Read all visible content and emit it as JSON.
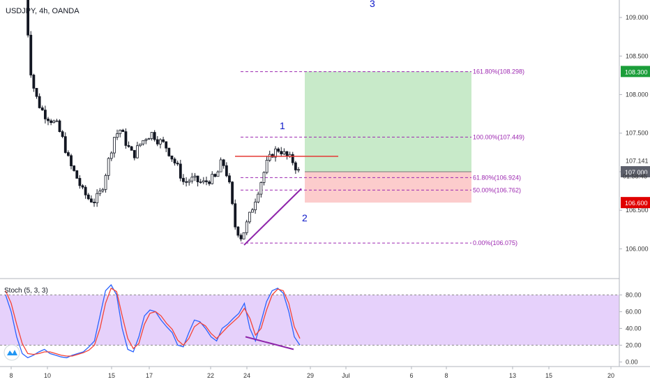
{
  "header": {
    "symbol_title": "USDJPY, 4h, OANDA"
  },
  "colors": {
    "candle_up": "#ffffff",
    "candle_down": "#131722",
    "candle_border": "#131722",
    "fib": "#9c27b0",
    "wave_label": "#0d18c9",
    "resistance": "#e53935",
    "trendline": "#8e24aa",
    "target_zone": "#c8eac9",
    "stop_zone": "#fccccc",
    "stoch_band": "#e6d1fb",
    "k_line": "#2962ff",
    "d_line": "#f44336",
    "price_target_badge": "#1b9e3a",
    "price_stop_badge": "#e00000",
    "price_current_badge": "#5d606b",
    "logo": "#2196f3"
  },
  "chart_data": [
    {
      "type": "candlestick",
      "title": "USDJPY, 4h, OANDA",
      "x_tick_labels": [
        "8",
        "10",
        "15",
        "17",
        "22",
        "24",
        "29",
        "Jul",
        "6",
        "8",
        "13",
        "15",
        "20"
      ],
      "y_ticks": [
        106.0,
        106.5,
        107.0,
        107.5,
        108.0,
        108.5,
        109.0
      ],
      "y_tick_labels": [
        "106.000",
        "106.500",
        "107.000",
        "107.500",
        "108.000",
        "108.500",
        "109.000"
      ],
      "ylim": [
        105.85,
        109.1
      ],
      "grid": false,
      "close_path": [
        109.3,
        108.2,
        107.9,
        107.75,
        107.68,
        107.6,
        107.4,
        107.1,
        106.95,
        106.75,
        106.65,
        106.62,
        106.75,
        107.1,
        107.45,
        107.55,
        107.35,
        107.2,
        107.35,
        107.45,
        107.5,
        107.4,
        107.35,
        107.2,
        107.05,
        106.85,
        106.9,
        106.88,
        106.85,
        106.9,
        106.92,
        107.15,
        106.9,
        106.3,
        106.15,
        106.35,
        106.6,
        106.85,
        107.1,
        107.25,
        107.3,
        107.2,
        107.15,
        107.0
      ],
      "series": [
        {
          "name": "Fibonacci levels",
          "type": "fib",
          "levels": [
            {
              "label": "161.80%(108.298)",
              "value": 108.298
            },
            {
              "label": "100.00%(107.449)",
              "value": 107.449
            },
            {
              "label": "61.80%(106.924)",
              "value": 106.924
            },
            {
              "label": "50.00%(106.762)",
              "value": 106.762
            },
            {
              "label": "0.00%(106.075)",
              "value": 106.075
            }
          ]
        },
        {
          "name": "Resistance",
          "type": "hline",
          "value": 107.2
        },
        {
          "name": "Trendline",
          "type": "line",
          "points": [
            [
              106.05
            ],
            [
              106.78
            ]
          ]
        },
        {
          "name": "Target zone",
          "type": "area",
          "range": [
            107.0,
            108.3
          ]
        },
        {
          "name": "Stop zone",
          "type": "area",
          "range": [
            106.6,
            107.0
          ]
        }
      ],
      "wave_labels": [
        "3",
        "1",
        "2"
      ],
      "price_badges": [
        {
          "label": "108.300",
          "kind": "target"
        },
        {
          "label": "107.141",
          "kind": "plain"
        },
        {
          "label": "01:58:45",
          "kind": "plain"
        },
        {
          "label": "107.000",
          "kind": "current"
        },
        {
          "label": "106.600",
          "kind": "stop"
        }
      ]
    },
    {
      "type": "line",
      "title": "Stoch (5, 3, 3)",
      "y_ticks": [
        0,
        20,
        40,
        60,
        80
      ],
      "y_tick_labels": [
        "0.00",
        "20.00",
        "40.00",
        "60.00",
        "80.00"
      ],
      "ylim": [
        -3,
        92
      ],
      "band": [
        20,
        80
      ],
      "series": [
        {
          "name": "%K",
          "values": [
            80,
            60,
            30,
            10,
            5,
            8,
            12,
            15,
            10,
            8,
            6,
            5,
            8,
            10,
            12,
            18,
            25,
            55,
            85,
            92,
            80,
            40,
            15,
            12,
            30,
            55,
            62,
            60,
            50,
            42,
            35,
            20,
            18,
            35,
            50,
            48,
            40,
            30,
            25,
            40,
            45,
            52,
            58,
            70,
            40,
            25,
            48,
            72,
            85,
            88,
            82,
            60,
            30,
            20
          ]
        },
        {
          "name": "%D",
          "values": [
            85,
            70,
            45,
            22,
            10,
            9,
            10,
            12,
            12,
            10,
            8,
            7,
            7,
            9,
            11,
            14,
            20,
            40,
            70,
            88,
            84,
            55,
            28,
            16,
            22,
            45,
            58,
            60,
            55,
            46,
            39,
            26,
            20,
            28,
            42,
            47,
            43,
            34,
            28,
            35,
            42,
            48,
            54,
            64,
            52,
            32,
            40,
            62,
            80,
            87,
            85,
            70,
            42,
            28
          ]
        },
        {
          "name": "Divergence",
          "type": "line",
          "points": [
            [
              30
            ],
            [
              15
            ]
          ]
        }
      ]
    }
  ]
}
